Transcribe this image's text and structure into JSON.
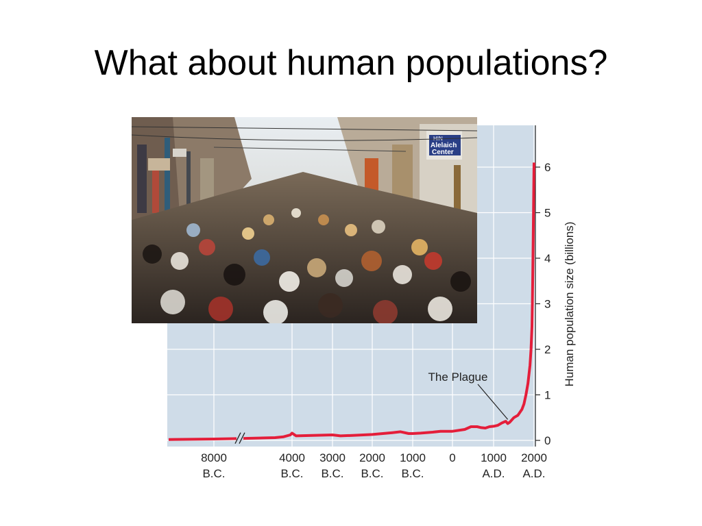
{
  "slide": {
    "title": "What about human populations?"
  },
  "photo": {
    "description_icon": "crowded-street-market-photo",
    "sign_text_1": "HIN",
    "sign_text_2": "Alelaich",
    "sign_text_3": "Center"
  },
  "chart_data": {
    "type": "line",
    "title": "",
    "xlabel": "",
    "ylabel": "Human population size (billions)",
    "ylim": [
      0,
      6.5
    ],
    "y_ticks": [
      "0",
      "1",
      "2",
      "3",
      "4",
      "5",
      "6"
    ],
    "x_ticks": [
      {
        "year": -8000,
        "line1": "8000",
        "line2": "B.C."
      },
      {
        "year": -4000,
        "line1": "4000",
        "line2": "B.C."
      },
      {
        "year": -3000,
        "line1": "3000",
        "line2": "B.C."
      },
      {
        "year": -2000,
        "line1": "2000",
        "line2": "B.C."
      },
      {
        "year": -1000,
        "line1": "1000",
        "line2": "B.C."
      },
      {
        "year": 0,
        "line1": "0",
        "line2": ""
      },
      {
        "year": 1000,
        "line1": "1000",
        "line2": "A.D."
      },
      {
        "year": 2000,
        "line1": "2000",
        "line2": "A.D."
      }
    ],
    "axis_break": true,
    "grid": true,
    "background_color": "#cfdce8",
    "line_color": "#e41e3a",
    "annotation": {
      "text": "The Plague",
      "year": 1350,
      "value": 0.37
    },
    "series": [
      {
        "name": "",
        "points": [
          [
            -9000,
            0.02
          ],
          [
            -8000,
            0.03
          ],
          [
            -7000,
            0.04
          ],
          [
            -5000,
            0.06
          ],
          [
            -4500,
            0.08
          ],
          [
            -4100,
            0.12
          ],
          [
            -4000,
            0.16
          ],
          [
            -3900,
            0.1
          ],
          [
            -3500,
            0.11
          ],
          [
            -3000,
            0.12
          ],
          [
            -2800,
            0.1
          ],
          [
            -2500,
            0.11
          ],
          [
            -2000,
            0.13
          ],
          [
            -1500,
            0.17
          ],
          [
            -1300,
            0.19
          ],
          [
            -1100,
            0.15
          ],
          [
            -1000,
            0.15
          ],
          [
            -800,
            0.16
          ],
          [
            -500,
            0.18
          ],
          [
            -300,
            0.2
          ],
          [
            0,
            0.2
          ],
          [
            300,
            0.24
          ],
          [
            450,
            0.3
          ],
          [
            600,
            0.3
          ],
          [
            700,
            0.28
          ],
          [
            800,
            0.27
          ],
          [
            900,
            0.3
          ],
          [
            1000,
            0.31
          ],
          [
            1100,
            0.33
          ],
          [
            1200,
            0.38
          ],
          [
            1300,
            0.42
          ],
          [
            1350,
            0.37
          ],
          [
            1400,
            0.4
          ],
          [
            1500,
            0.5
          ],
          [
            1600,
            0.55
          ],
          [
            1700,
            0.68
          ],
          [
            1750,
            0.8
          ],
          [
            1800,
            1.0
          ],
          [
            1850,
            1.25
          ],
          [
            1900,
            1.65
          ],
          [
            1925,
            2.0
          ],
          [
            1950,
            2.5
          ],
          [
            1960,
            3.0
          ],
          [
            1970,
            3.7
          ],
          [
            1980,
            4.45
          ],
          [
            1987,
            5.0
          ],
          [
            1995,
            5.7
          ],
          [
            2000,
            6.1
          ]
        ]
      }
    ]
  }
}
